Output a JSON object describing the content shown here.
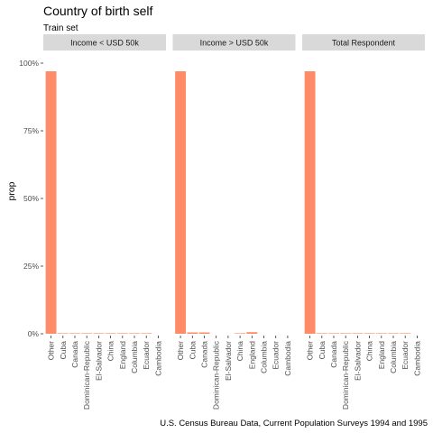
{
  "chart_data": {
    "type": "bar",
    "title": "Country of birth self",
    "subtitle": "Train set",
    "ylabel": "prop",
    "xlabel": "",
    "caption": "U.S. Census Bureau Data, Current Population Surveys 1994 and 1995",
    "ylim": [
      0,
      1
    ],
    "yticks": [
      "0%",
      "25%",
      "50%",
      "75%",
      "100%"
    ],
    "ytick_values": [
      0,
      0.25,
      0.5,
      0.75,
      1.0
    ],
    "grid": false,
    "bar_color": "#FF8C69",
    "strip_color": "#D9D9D9",
    "categories": [
      "Other",
      "Cuba",
      "Canada",
      "Dominican-Republic",
      "El-Salvador",
      "China",
      "England",
      "Columbia",
      "Ecuador",
      "Cambodia"
    ],
    "panels": [
      {
        "name": "Income < USD 50k",
        "values": [
          0.97,
          0.002,
          0.002,
          0.002,
          0.002,
          0.002,
          0.002,
          0.002,
          0.002,
          0.0
        ]
      },
      {
        "name": "Income > USD 50k",
        "values": [
          0.97,
          0.005,
          0.005,
          0.0,
          0.0,
          0.002,
          0.006,
          0.0,
          0.0,
          0.0
        ]
      },
      {
        "name": "Total Respondent",
        "values": [
          0.97,
          0.002,
          0.002,
          0.002,
          0.002,
          0.002,
          0.002,
          0.002,
          0.002,
          0.0
        ]
      }
    ]
  }
}
